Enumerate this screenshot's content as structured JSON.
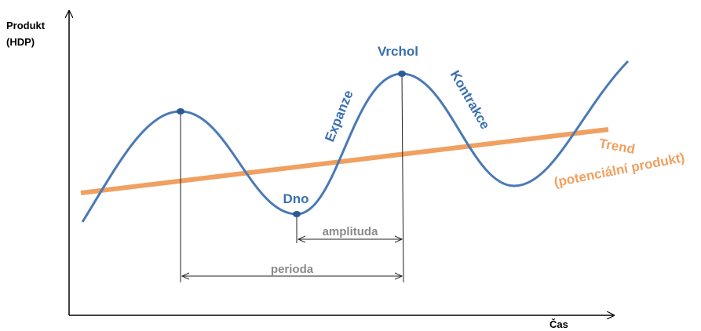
{
  "axes": {
    "y_label": [
      "Produkt",
      "(HDP)"
    ],
    "x_label": "Čas"
  },
  "points": {
    "peak": "Vrchol",
    "trough": "Dno"
  },
  "phases": {
    "expansion": "Expanze",
    "contraction": "Kontrakce"
  },
  "trend": {
    "title": "Trend",
    "subtitle": "(potenciální produkt)"
  },
  "measures": {
    "amplitude": "amplituda",
    "period": "perioda"
  }
}
